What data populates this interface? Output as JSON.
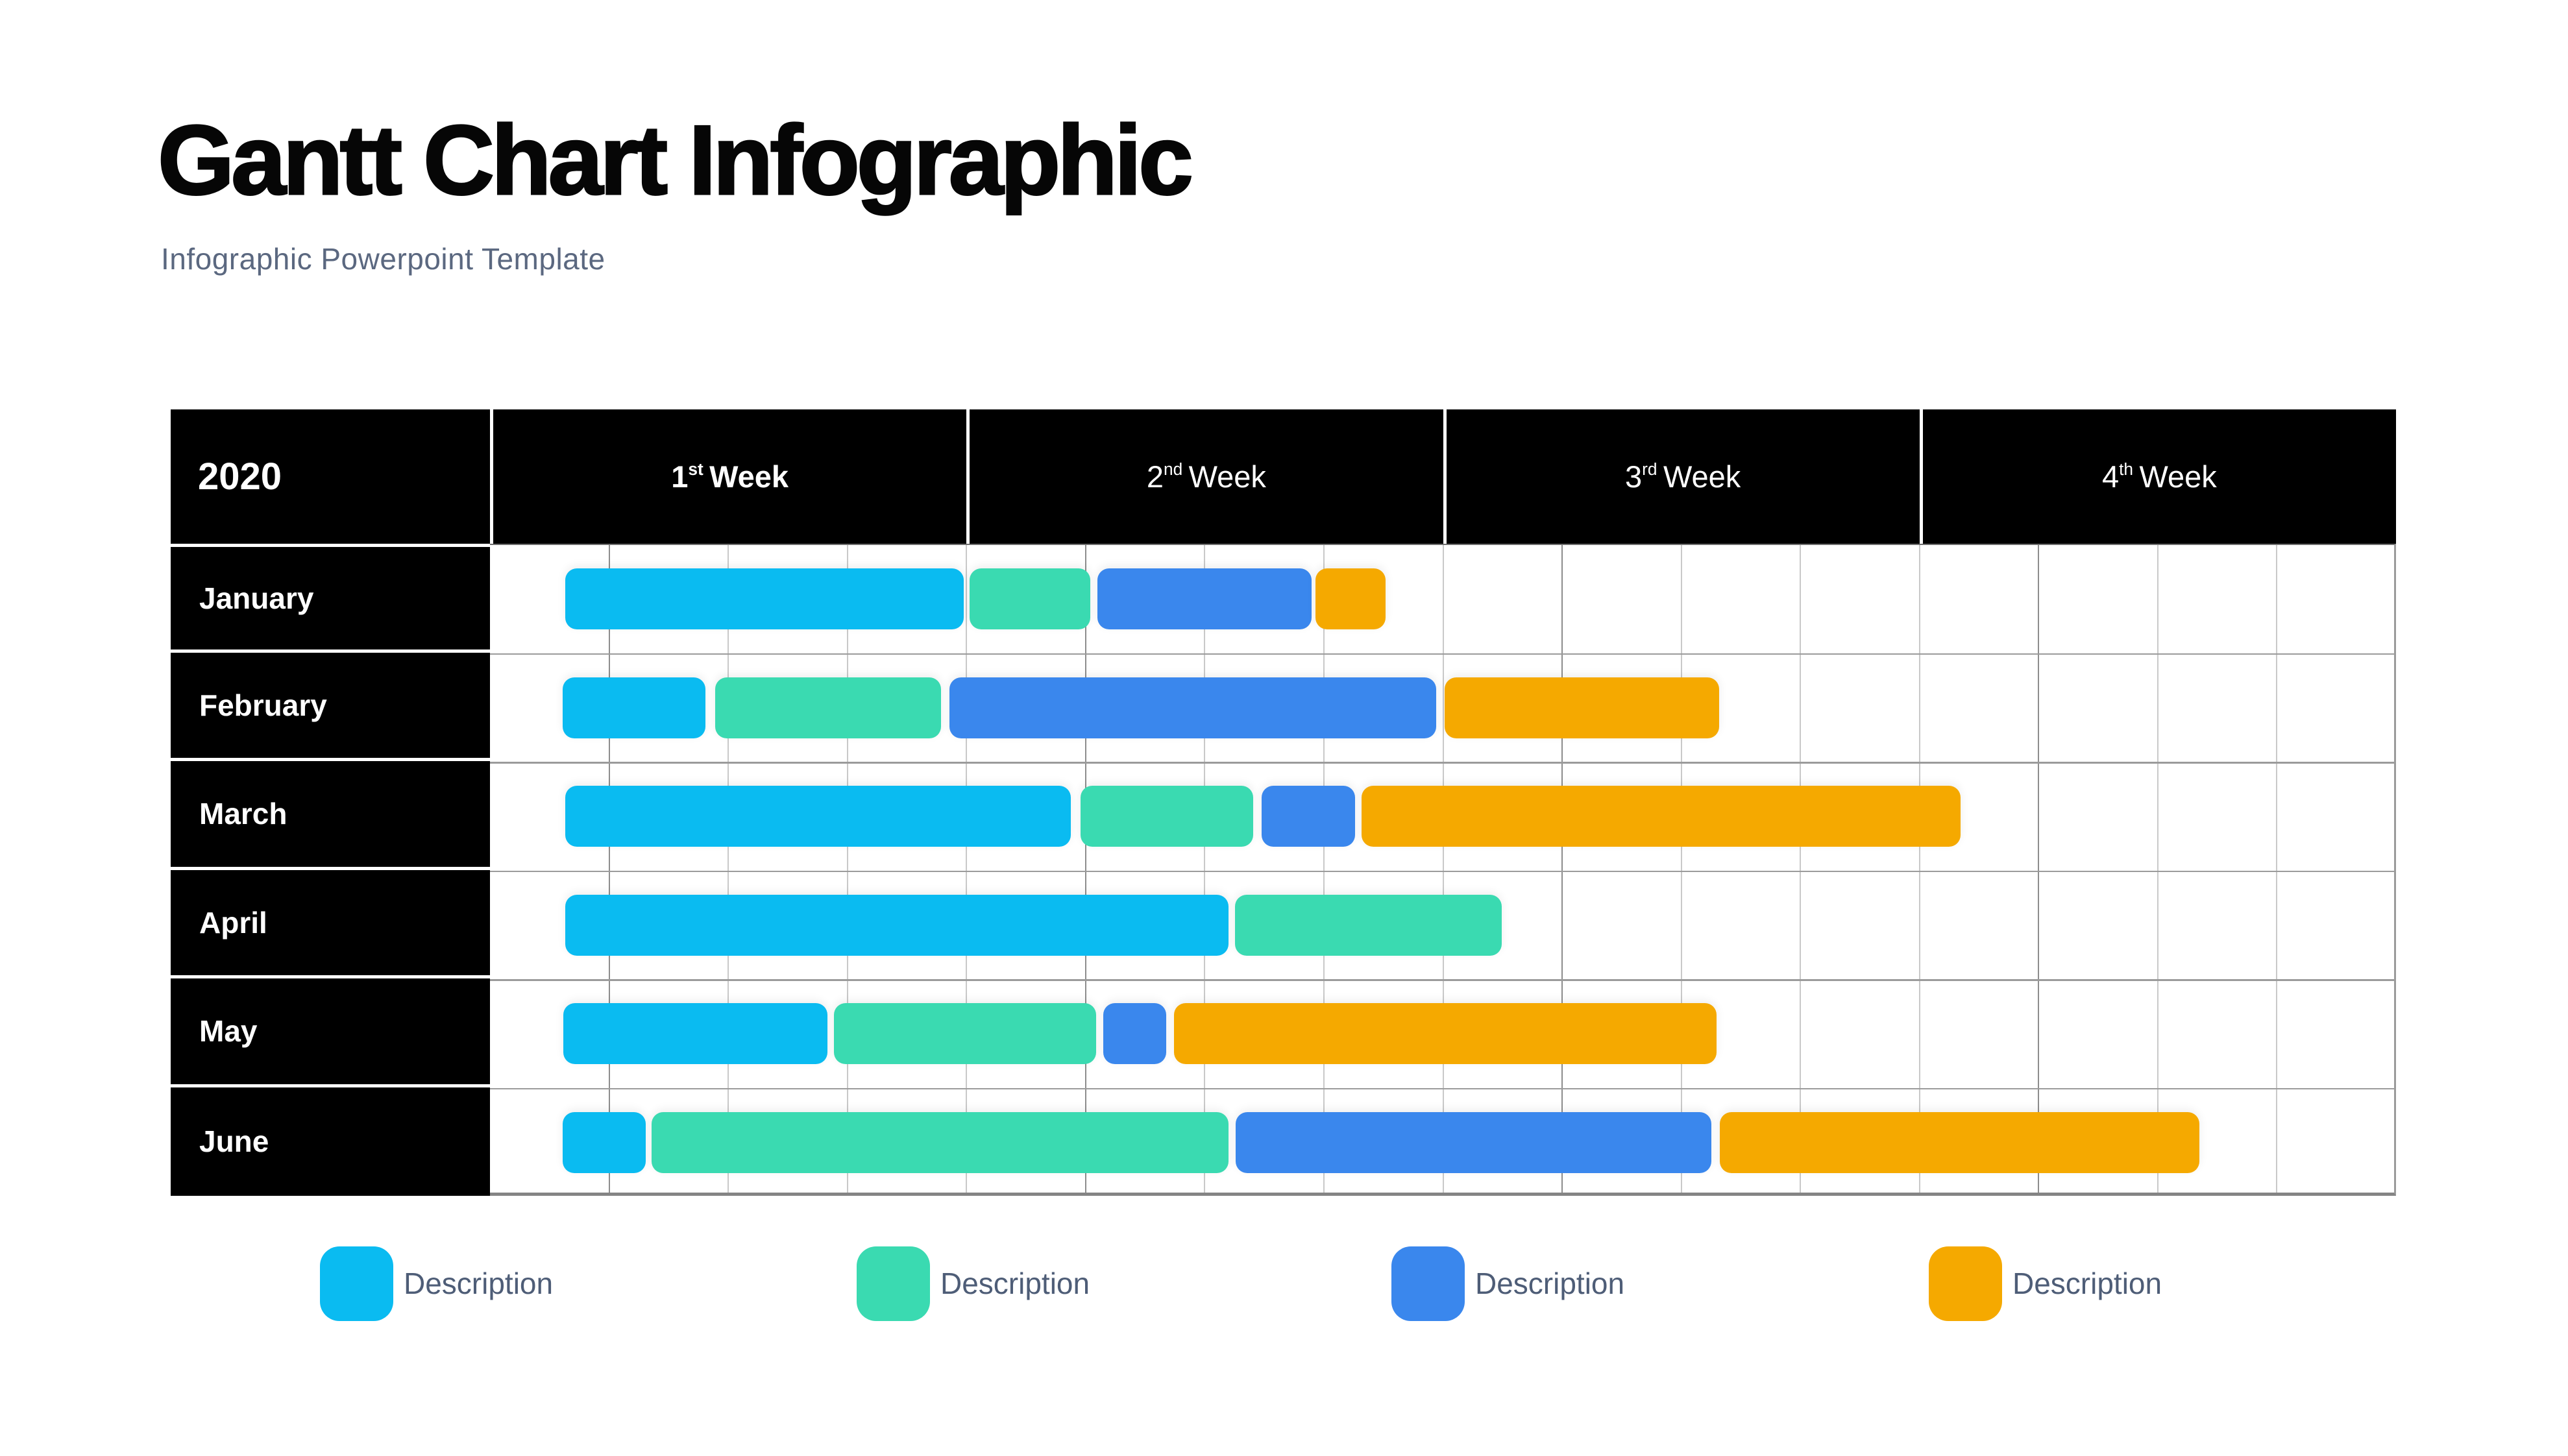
{
  "page": {
    "title": "Gantt Chart Infographic",
    "subtitle": "Infographic Powerpoint Template"
  },
  "colors": {
    "cyan": "#0abbf1",
    "green": "#3adab1",
    "blue": "#3a87ed",
    "orange": "#f5a900",
    "header_bg": "#000000",
    "header_text": "#ffffff",
    "subtitle_text": "#5b6880",
    "legend_text": "#4e5d77",
    "grid_light": "#c9c9c9",
    "grid_dark": "#8d8d8d",
    "row_line": "#9b9b9b"
  },
  "chart_data": {
    "type": "gantt",
    "title": "Gantt Chart Infographic",
    "year": "2020",
    "weeks_per_row": 4,
    "subcolumns_per_week": 4,
    "week_headers": [
      {
        "ordinal": "1",
        "suffix": "st",
        "word": "Week",
        "bold": true
      },
      {
        "ordinal": "2",
        "suffix": "nd",
        "word": "Week",
        "bold": false
      },
      {
        "ordinal": "3",
        "suffix": "rd",
        "word": "Week",
        "bold": false
      },
      {
        "ordinal": "4",
        "suffix": "th",
        "word": "Week",
        "bold": false
      }
    ],
    "rows": [
      {
        "month": "January",
        "bars": [
          {
            "color_key": "cyan",
            "start_pct": 3.95,
            "width_pct": 20.94
          },
          {
            "color_key": "green",
            "start_pct": 25.2,
            "width_pct": 6.33
          },
          {
            "color_key": "blue",
            "start_pct": 31.9,
            "width_pct": 11.24
          },
          {
            "color_key": "orange",
            "start_pct": 43.34,
            "width_pct": 3.71
          }
        ]
      },
      {
        "month": "February",
        "bars": [
          {
            "color_key": "cyan",
            "start_pct": 3.81,
            "width_pct": 7.49
          },
          {
            "color_key": "green",
            "start_pct": 11.81,
            "width_pct": 11.88
          },
          {
            "color_key": "blue",
            "start_pct": 24.14,
            "width_pct": 25.54
          },
          {
            "color_key": "orange",
            "start_pct": 50.12,
            "width_pct": 14.44
          }
        ]
      },
      {
        "month": "March",
        "bars": [
          {
            "color_key": "cyan",
            "start_pct": 3.95,
            "width_pct": 26.56
          },
          {
            "color_key": "green",
            "start_pct": 31.02,
            "width_pct": 9.06
          },
          {
            "color_key": "blue",
            "start_pct": 40.52,
            "width_pct": 4.9
          },
          {
            "color_key": "orange",
            "start_pct": 45.79,
            "width_pct": 31.43
          }
        ]
      },
      {
        "month": "April",
        "bars": [
          {
            "color_key": "cyan",
            "start_pct": 3.95,
            "width_pct": 34.83
          },
          {
            "color_key": "green",
            "start_pct": 39.12,
            "width_pct": 14.03
          }
        ]
      },
      {
        "month": "May",
        "bars": [
          {
            "color_key": "cyan",
            "start_pct": 3.85,
            "width_pct": 13.89
          },
          {
            "color_key": "green",
            "start_pct": 18.05,
            "width_pct": 13.79
          },
          {
            "color_key": "blue",
            "start_pct": 32.21,
            "width_pct": 3.3
          },
          {
            "color_key": "orange",
            "start_pct": 35.92,
            "width_pct": 28.5
          }
        ]
      },
      {
        "month": "June",
        "bars": [
          {
            "color_key": "cyan",
            "start_pct": 3.81,
            "width_pct": 4.36
          },
          {
            "color_key": "green",
            "start_pct": 8.48,
            "width_pct": 30.3
          },
          {
            "color_key": "blue",
            "start_pct": 39.16,
            "width_pct": 24.99
          },
          {
            "color_key": "orange",
            "start_pct": 64.59,
            "width_pct": 25.2
          }
        ]
      }
    ],
    "legend": [
      {
        "color_key": "cyan",
        "label": "Description"
      },
      {
        "color_key": "green",
        "label": "Description"
      },
      {
        "color_key": "blue",
        "label": "Description"
      },
      {
        "color_key": "orange",
        "label": "Description"
      }
    ]
  }
}
